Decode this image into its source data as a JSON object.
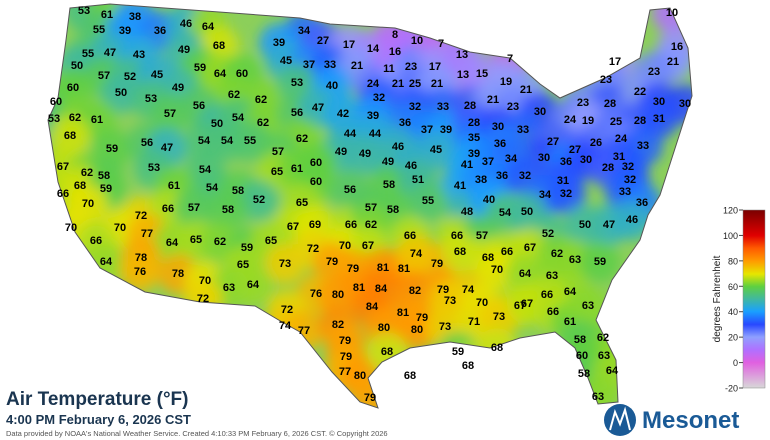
{
  "title": "Air Temperature (°F)",
  "subtitle": "4:00 PM February 6, 2026 CST",
  "credit": "Data provided by NOAA's National Weather Service. Created 4:10:33 PM February 6, 2026 CST. © Copyright 2026",
  "logo": "Mesonet",
  "legend": {
    "label": "degrees Fahrenheit",
    "lim": [
      -20,
      120
    ],
    "ticks": [
      120,
      100,
      80,
      60,
      40,
      20,
      0,
      -20
    ]
  },
  "stations": [
    53,
    61,
    38,
    55,
    39,
    36,
    46,
    64,
    68,
    34,
    27,
    17,
    14,
    16,
    8,
    10,
    7,
    10,
    16,
    55,
    47,
    43,
    49,
    39,
    45,
    37,
    33,
    21,
    11,
    23,
    17,
    13,
    7,
    17,
    21,
    50,
    57,
    52,
    45,
    59,
    64,
    60,
    13,
    15,
    23,
    23,
    60,
    50,
    49,
    62,
    62,
    53,
    40,
    24,
    21,
    25,
    21,
    19,
    21,
    23,
    28,
    22,
    30,
    30,
    60,
    53,
    56,
    32,
    32,
    33,
    28,
    21,
    23,
    30,
    53,
    62,
    61,
    57,
    50,
    54,
    62,
    56,
    47,
    42,
    39,
    36,
    24,
    19,
    25,
    28,
    31,
    68,
    59,
    56,
    47,
    54,
    54,
    55,
    62,
    44,
    44,
    37,
    39,
    28,
    35,
    30,
    33,
    27,
    27,
    26,
    24,
    33,
    67,
    53,
    57,
    49,
    49,
    46,
    45,
    39,
    36,
    30,
    31,
    32,
    62,
    58,
    54,
    65,
    61,
    60,
    49,
    46,
    41,
    37,
    34,
    36,
    30,
    66,
    68,
    59,
    61,
    54,
    58,
    60,
    56,
    58,
    51,
    41,
    38,
    36,
    32,
    31,
    28,
    32,
    70,
    52,
    65,
    55,
    48,
    40,
    34,
    32,
    33,
    36,
    70,
    72,
    66,
    57,
    58,
    67,
    69,
    66,
    57,
    58,
    62,
    54,
    50,
    47,
    46,
    50,
    52,
    70,
    77,
    66,
    64,
    65,
    62,
    59,
    65,
    72,
    70,
    67,
    66,
    66,
    57,
    66,
    67,
    62,
    63,
    59,
    64,
    78,
    76,
    78,
    65,
    73,
    79,
    79,
    81,
    81,
    79,
    68,
    68,
    74,
    70,
    63,
    64,
    72,
    76,
    80,
    81,
    84,
    82,
    79,
    74,
    70,
    64,
    63,
    64,
    66,
    67,
    72,
    74,
    77,
    82,
    84,
    81,
    79,
    73,
    70,
    80,
    80,
    73,
    71,
    73,
    67,
    66,
    61,
    63,
    62,
    58,
    63,
    60,
    58,
    64,
    63,
    79,
    79,
    77,
    80,
    68,
    59,
    68,
    68,
    68,
    79
  ]
}
